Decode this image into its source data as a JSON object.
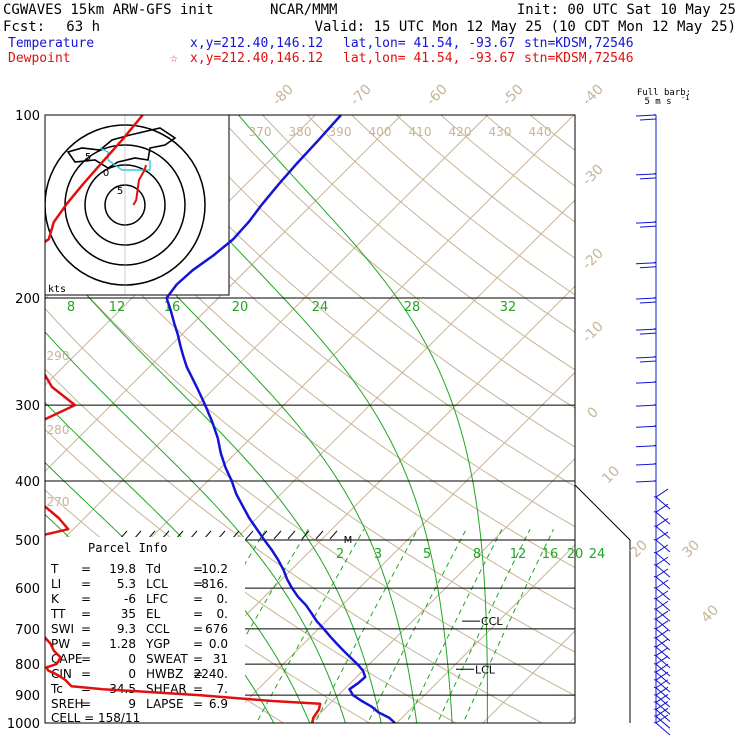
{
  "header": {
    "model": "CGWAVES 15km ARW-GFS init",
    "org": "NCAR/MMM",
    "init": "Init: 00 UTC Sat 10 May 25",
    "fcst_label": "Fcst:",
    "fcst_value": "63 h",
    "valid": "Valid: 15 UTC Mon 12 May 25 (10 CDT Mon 12 May 25)"
  },
  "legend": {
    "temperature": {
      "label": "Temperature",
      "xy": "x,y=212.40,146.12",
      "latlon": "lat,lon= 41.54, -93.67",
      "stn": "stn=KDSM,72546",
      "color": "#1414d2"
    },
    "dewpoint": {
      "label": "Dewpoint",
      "marker": "☆",
      "xy": "x,y=212.40,146.12",
      "latlon": "lat,lon= 41.54, -93.67",
      "stn": "stn=KDSM,72546",
      "color": "#e01010"
    }
  },
  "barb_legend": {
    "line1": "Full barb:",
    "line2": "5 m s",
    "sup": "-1"
  },
  "hodograph": {
    "units": "kts",
    "ring_labels": [
      "5",
      "5",
      "0"
    ]
  },
  "chart_data": {
    "type": "line",
    "title": "",
    "ylabel_ticks": [
      100,
      200,
      300,
      400,
      500,
      600,
      700,
      800,
      900,
      1000
    ],
    "plim": [
      1000,
      100
    ],
    "isotherm_labels": [
      "-80",
      "-70",
      "-60",
      "-50",
      "-40",
      "-30",
      "-20",
      "-10",
      "0",
      "10",
      "20",
      "30",
      "40"
    ],
    "theta_labels": [
      "370",
      "380",
      "390",
      "400",
      "410",
      "420",
      "430",
      "440"
    ],
    "theta_left_labels": [
      "290",
      "280",
      "270"
    ],
    "mixing_ratio_labels_top": [
      "8",
      "12",
      "16",
      "20",
      "24",
      "28",
      "32"
    ],
    "mixing_ratio_labels_low": [
      "2",
      "3",
      "5",
      "8",
      "12",
      "16",
      "20",
      "24"
    ],
    "series": [
      {
        "name": "Temperature",
        "color": "#1414d2",
        "p": [
          1000,
          980,
          960,
          940,
          920,
          900,
          880,
          860,
          840,
          820,
          800,
          780,
          760,
          740,
          720,
          700,
          680,
          660,
          640,
          620,
          600,
          580,
          560,
          540,
          520,
          500,
          480,
          460,
          440,
          420,
          400,
          380,
          360,
          340,
          320,
          300,
          280,
          260,
          250,
          240,
          230,
          220,
          210,
          200,
          190,
          180,
          170,
          160,
          150,
          140,
          130,
          120,
          110,
          100
        ],
        "t": [
          19.8,
          18.5,
          16.6,
          15.2,
          13.4,
          11.7,
          10.6,
          10.9,
          11.0,
          10.0,
          8.6,
          7.0,
          5.4,
          3.8,
          2.2,
          0.6,
          -1.1,
          -2.6,
          -4.2,
          -6.1,
          -7.8,
          -9.4,
          -10.9,
          -12.6,
          -14.5,
          -16.6,
          -18.7,
          -20.9,
          -23.0,
          -25.2,
          -27.2,
          -29.5,
          -31.7,
          -33.8,
          -36.3,
          -39.1,
          -42.2,
          -45.6,
          -47.2,
          -48.8,
          -50.4,
          -52.2,
          -54.0,
          -56.0,
          -56.4,
          -56.2,
          -55.5,
          -55.1,
          -55.3,
          -55.8,
          -56.2,
          -56.5,
          -56.7,
          -57.0
        ]
      },
      {
        "name": "Dewpoint",
        "color": "#e01010",
        "p": [
          1000,
          980,
          950,
          930,
          920,
          900,
          880,
          870,
          860,
          850,
          840,
          830,
          820,
          810,
          800,
          780,
          760,
          740,
          720,
          700,
          680,
          660,
          640,
          620,
          600,
          580,
          560,
          540,
          520,
          500,
          480,
          460,
          440,
          420,
          400,
          380,
          360,
          340,
          320,
          300,
          280,
          260,
          250,
          240,
          230,
          220,
          210,
          200,
          190,
          180,
          170,
          160,
          150,
          140,
          130,
          120,
          110,
          100
        ],
        "td": [
          10.2,
          9.7,
          9.4,
          8.9,
          3.0,
          -6.0,
          -18.0,
          -22.0,
          -22.7,
          -23.4,
          -24.3,
          -25.3,
          -26.5,
          -27.1,
          -26.3,
          -26.6,
          -28.2,
          -29.4,
          -31.0,
          -32.8,
          -34.2,
          -35.8,
          -37.1,
          -38.3,
          -39.3,
          -40.5,
          -41.4,
          -42.4,
          -43.5,
          -44.7,
          -40.6,
          -43.0,
          -46.0,
          -49.3,
          -50.2,
          -52.4,
          -53.6,
          -54.7,
          -56.4,
          -54.2,
          -59.0,
          -62.6,
          -65.4,
          -67.3,
          -69.6,
          -72.8,
          -75.0,
          -78.0,
          -78.0,
          -77.8,
          -77.2,
          -76.5,
          -77.9,
          -78.5,
          -78.9,
          -79.2,
          -79.5,
          -80.0
        ]
      }
    ],
    "hodograph_trace": [
      [
        6,
        0
      ],
      [
        8,
        1
      ],
      [
        9,
        3
      ],
      [
        10,
        5
      ],
      [
        12,
        6
      ],
      [
        14,
        7
      ],
      [
        15,
        8
      ]
    ],
    "annotations": {
      "ccl_label": "CCL",
      "ccl_p": 680,
      "lcl_label": "LCL",
      "lcl_p": 816,
      "m_label": "M",
      "m_p": 500
    }
  },
  "parcel_info": {
    "title": "Parcel Info",
    "rows": [
      {
        "k1": "T",
        "v1": "19.8",
        "k2": "Td",
        "v2": "10.2"
      },
      {
        "k1": "LI",
        "v1": "5.3",
        "k2": "LCL",
        "v2": "816."
      },
      {
        "k1": "K",
        "v1": "-6",
        "k2": "LFC",
        "v2": "0."
      },
      {
        "k1": "TT",
        "v1": "35",
        "k2": "EL",
        "v2": "0."
      },
      {
        "k1": "SWI",
        "v1": "9.3",
        "k2": "CCL",
        "v2": "676"
      },
      {
        "k1": "PW",
        "v1": "1.28",
        "k2": "YGP",
        "v2": "0.0"
      },
      {
        "k1": "CAPE",
        "v1": "0",
        "k2": "SWEAT",
        "v2": "31"
      },
      {
        "k1": "CIN",
        "v1": "0",
        "k2": "HWBZ",
        "v2": "2240."
      },
      {
        "k1": "Tc",
        "v1": "34.5",
        "k2": "SHEAR",
        "v2": "7."
      },
      {
        "k1": "SREH",
        "v1": "9",
        "k2": "LAPSE",
        "v2": "6.9"
      }
    ],
    "cell": "CELL = 158/11"
  }
}
